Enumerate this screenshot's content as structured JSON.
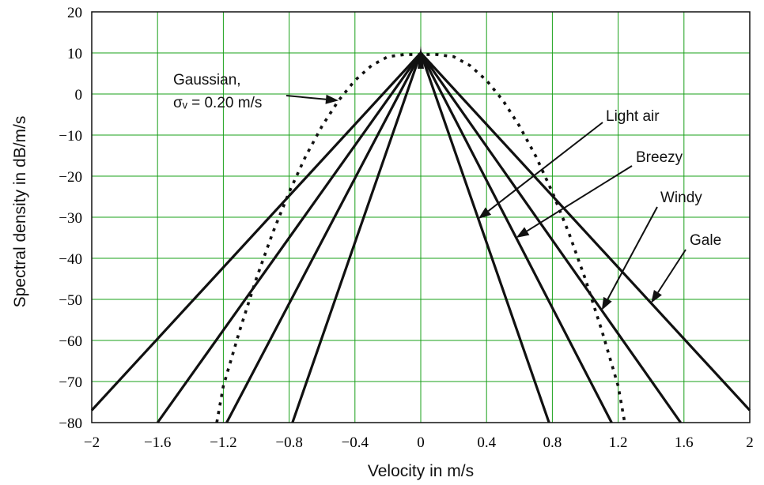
{
  "chart_data": {
    "type": "line",
    "title": "",
    "xlabel": "Velocity in m/s",
    "ylabel": "Spectral density in dB/m/s",
    "xlim": [
      -2,
      2
    ],
    "ylim": [
      -80,
      20
    ],
    "xticks": [
      -2,
      -1.6,
      -1.2,
      -0.8,
      -0.4,
      0,
      0.4,
      0.8,
      1.2,
      1.6,
      2
    ],
    "xtick_labels": [
      "−2",
      "−1.6",
      "−1.2",
      "−0.8",
      "−0.4",
      "0",
      "0.4",
      "0.8",
      "1.2",
      "1.6",
      "2"
    ],
    "yticks": [
      20,
      10,
      0,
      -10,
      -20,
      -30,
      -40,
      -50,
      -60,
      -70,
      -80
    ],
    "ytick_labels": [
      "20",
      "10",
      "0",
      "−10",
      "−20",
      "−30",
      "−40",
      "−50",
      "−60",
      "−70",
      "−80"
    ],
    "grid": true,
    "series": [
      {
        "name": "Light air",
        "style": "solid",
        "x": [
          -0.78,
          0,
          0.78
        ],
        "y": [
          -80,
          10,
          -80
        ]
      },
      {
        "name": "Breezy",
        "style": "solid",
        "x": [
          -1.18,
          0,
          1.16
        ],
        "y": [
          -80,
          10,
          -80
        ]
      },
      {
        "name": "Windy",
        "style": "solid",
        "x": [
          -1.6,
          0,
          1.58
        ],
        "y": [
          -80,
          10,
          -80
        ]
      },
      {
        "name": "Gale",
        "style": "solid",
        "x": [
          -2.0,
          0,
          2.0
        ],
        "y": [
          -77,
          10,
          -77
        ]
      },
      {
        "name": "Gaussian, σᵥ = 0.20 m/s",
        "style": "dotted",
        "x": [
          -1.24,
          -1.2,
          -1.1,
          -1.0,
          -0.9,
          -0.8,
          -0.7,
          -0.6,
          -0.5,
          -0.4,
          -0.3,
          -0.2,
          -0.1,
          0,
          0.1,
          0.2,
          0.3,
          0.4,
          0.5,
          0.6,
          0.7,
          0.8,
          0.9,
          1.0,
          1.1,
          1.2,
          1.24
        ],
        "y": [
          -80,
          -71.1,
          -57.5,
          -45.0,
          -33.8,
          -23.9,
          -15.2,
          -7.8,
          -1.6,
          3.3,
          6.9,
          9.1,
          9.6,
          9.6,
          9.6,
          9.1,
          6.9,
          3.3,
          -1.6,
          -7.8,
          -15.2,
          -23.9,
          -33.8,
          -45.0,
          -57.5,
          -71.1,
          -80
        ]
      }
    ],
    "annotations": [
      {
        "text": "Gaussian,",
        "target": "Gaussian"
      },
      {
        "text": "σᵥ = 0.20 m/s",
        "target": "Gaussian"
      },
      {
        "text": "Light air",
        "target": "Light air"
      },
      {
        "text": "Breezy",
        "target": "Breezy"
      },
      {
        "text": "Windy",
        "target": "Windy"
      },
      {
        "text": "Gale",
        "target": "Gale"
      }
    ]
  }
}
